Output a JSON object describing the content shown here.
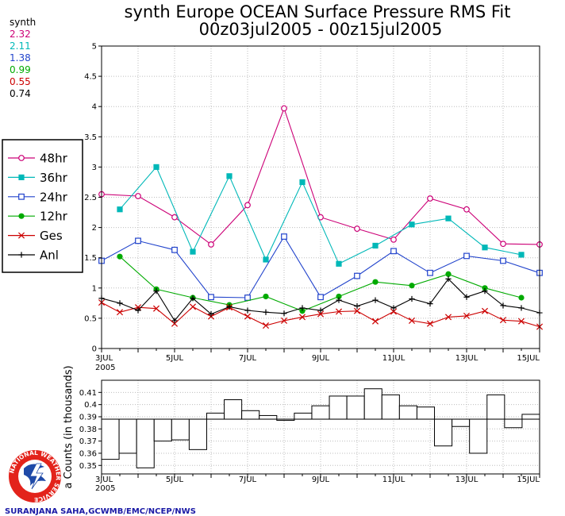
{
  "title_line1": "synth Europe OCEAN Surface Pressure RMS Fit",
  "title_line2": "00z03jul2005 - 00z15jul2005",
  "synth_panel": {
    "header": "synth",
    "values": [
      {
        "text": "2.32",
        "color": "#cc0077"
      },
      {
        "text": "2.11",
        "color": "#00b8b8"
      },
      {
        "text": "1.38",
        "color": "#2244cc"
      },
      {
        "text": "0.99",
        "color": "#00aa00"
      },
      {
        "text": "0.55",
        "color": "#cc0000"
      },
      {
        "text": "0.74",
        "color": "#000000"
      }
    ]
  },
  "x_tick_labels": [
    "3JUL",
    "5JUL",
    "7JUL",
    "9JUL",
    "11JUL",
    "13JUL",
    "15JUL"
  ],
  "x_year_label": "2005",
  "credit": "SURANJANA SAHA,GCWMB/EMC/NCEP/NWS",
  "logo_text": "NATIONAL WEATHER SERVICE",
  "chart_data": [
    {
      "type": "line",
      "xlim": [
        0,
        24
      ],
      "ylim": [
        0,
        5
      ],
      "y_ticks": [
        "0",
        "0.5",
        "1",
        "1.5",
        "2",
        "2.5",
        "3",
        "3.5",
        "4",
        "4.5",
        "5"
      ],
      "grid": true,
      "legend_placement": "left",
      "series": [
        {
          "name": "48hr",
          "color": "#cc0077",
          "marker": "circle-open",
          "points": [
            [
              0,
              2.55
            ],
            [
              2,
              2.52
            ],
            [
              4,
              2.17
            ],
            [
              6,
              1.72
            ],
            [
              8,
              2.37
            ],
            [
              10,
              3.97
            ],
            [
              12,
              2.17
            ],
            [
              14,
              1.98
            ],
            [
              16,
              1.8
            ],
            [
              18,
              2.48
            ],
            [
              20,
              2.3
            ],
            [
              22,
              1.73
            ],
            [
              24,
              1.72
            ]
          ]
        },
        {
          "name": "36hr",
          "color": "#00b8b8",
          "marker": "square-filled",
          "points": [
            [
              1,
              2.3
            ],
            [
              3,
              3.0
            ],
            [
              5,
              1.6
            ],
            [
              7,
              2.85
            ],
            [
              9,
              1.47
            ],
            [
              11,
              2.75
            ],
            [
              13,
              1.4
            ],
            [
              15,
              1.7
            ],
            [
              17,
              2.05
            ],
            [
              19,
              2.15
            ],
            [
              21,
              1.67
            ],
            [
              23,
              1.55
            ]
          ]
        },
        {
          "name": "24hr",
          "color": "#2244cc",
          "marker": "square-open",
          "points": [
            [
              0,
              1.45
            ],
            [
              2,
              1.78
            ],
            [
              4,
              1.63
            ],
            [
              6,
              0.85
            ],
            [
              8,
              0.84
            ],
            [
              10,
              1.85
            ],
            [
              12,
              0.85
            ],
            [
              14,
              1.2
            ],
            [
              16,
              1.61
            ],
            [
              18,
              1.25
            ],
            [
              20,
              1.53
            ],
            [
              22,
              1.45
            ],
            [
              24,
              1.25
            ]
          ]
        },
        {
          "name": "12hr",
          "color": "#00aa00",
          "marker": "circle-filled",
          "points": [
            [
              1,
              1.52
            ],
            [
              3,
              0.98
            ],
            [
              5,
              0.84
            ],
            [
              7,
              0.72
            ],
            [
              9,
              0.86
            ],
            [
              11,
              0.62
            ],
            [
              13,
              0.86
            ],
            [
              15,
              1.1
            ],
            [
              17,
              1.04
            ],
            [
              19,
              1.23
            ],
            [
              21,
              1.0
            ],
            [
              23,
              0.84
            ]
          ]
        },
        {
          "name": "Ges",
          "color": "#cc0000",
          "marker": "x",
          "points": [
            [
              0,
              0.76
            ],
            [
              1,
              0.6
            ],
            [
              2,
              0.68
            ],
            [
              3,
              0.66
            ],
            [
              4,
              0.41
            ],
            [
              5,
              0.69
            ],
            [
              6,
              0.53
            ],
            [
              7,
              0.68
            ],
            [
              8,
              0.53
            ],
            [
              9,
              0.38
            ],
            [
              10,
              0.46
            ],
            [
              11,
              0.52
            ],
            [
              12,
              0.57
            ],
            [
              13,
              0.61
            ],
            [
              14,
              0.62
            ],
            [
              15,
              0.45
            ],
            [
              16,
              0.61
            ],
            [
              17,
              0.46
            ],
            [
              18,
              0.41
            ],
            [
              19,
              0.52
            ],
            [
              20,
              0.54
            ],
            [
              21,
              0.62
            ],
            [
              22,
              0.47
            ],
            [
              23,
              0.45
            ],
            [
              24,
              0.36
            ]
          ]
        },
        {
          "name": "Anl",
          "color": "#000000",
          "marker": "plus",
          "points": [
            [
              0,
              0.83
            ],
            [
              1,
              0.75
            ],
            [
              2,
              0.63
            ],
            [
              3,
              0.95
            ],
            [
              4,
              0.46
            ],
            [
              5,
              0.83
            ],
            [
              6,
              0.57
            ],
            [
              7,
              0.69
            ],
            [
              8,
              0.63
            ],
            [
              9,
              0.6
            ],
            [
              10,
              0.58
            ],
            [
              11,
              0.67
            ],
            [
              12,
              0.63
            ],
            [
              13,
              0.8
            ],
            [
              14,
              0.7
            ],
            [
              15,
              0.8
            ],
            [
              16,
              0.67
            ],
            [
              17,
              0.82
            ],
            [
              18,
              0.74
            ],
            [
              19,
              1.15
            ],
            [
              20,
              0.85
            ],
            [
              21,
              0.95
            ],
            [
              22,
              0.71
            ],
            [
              23,
              0.67
            ],
            [
              24,
              0.59
            ]
          ]
        }
      ]
    },
    {
      "type": "bar",
      "xlim": [
        0,
        24
      ],
      "ylim": [
        0.343,
        0.42
      ],
      "y_ticks": [
        "0.35",
        "0.36",
        "0.37",
        "0.38",
        "0.39",
        "0.4",
        "0.41"
      ],
      "ylabel": "a Counts (in thousands)",
      "baseline": 0.388,
      "values": [
        0.355,
        0.36,
        0.348,
        0.37,
        0.371,
        0.363,
        0.393,
        0.404,
        0.395,
        0.391,
        0.387,
        0.393,
        0.399,
        0.407,
        0.407,
        0.413,
        0.408,
        0.399,
        0.398,
        0.366,
        0.382,
        0.36,
        0.408,
        0.381,
        0.392
      ]
    }
  ]
}
